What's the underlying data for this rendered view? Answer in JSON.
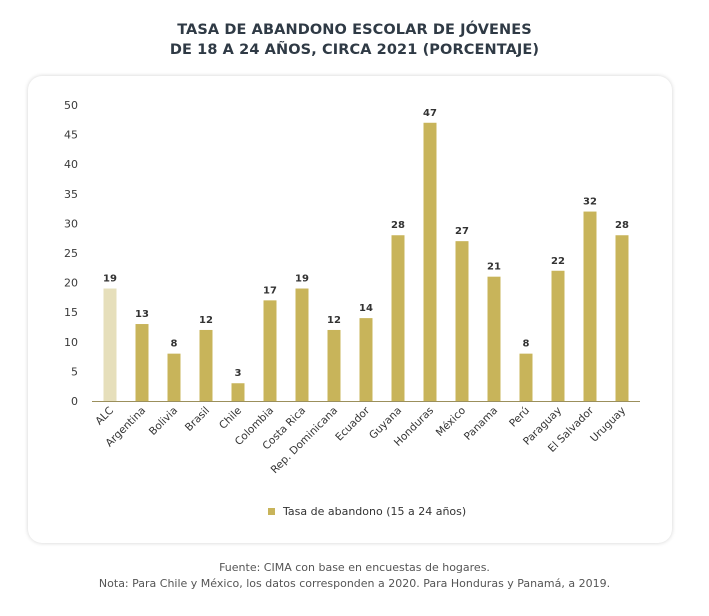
{
  "title_lines": [
    "TASA DE ABANDONO ESCOLAR DE JÓVENES",
    "DE 18 A 24 AÑOS, CIRCA 2021 (PORCENTAJE)"
  ],
  "footer": {
    "source": "Fuente: CIMA con base en encuestas de hogares.",
    "note": "Nota: Para Chile y México, los datos corresponden a 2020. Para Honduras y Panamá, a 2019."
  },
  "colors": {
    "bar": "#c8b45a",
    "highlight": "#e6dfbb",
    "axis": "#9b8f5c"
  },
  "chart_data": {
    "type": "bar",
    "title": "TASA DE ABANDONO ESCOLAR DE JÓVENES DE 18 A 24 AÑOS, CIRCA 2021 (PORCENTAJE)",
    "xlabel": "",
    "ylabel": "",
    "ylim": [
      0,
      50
    ],
    "yticks": [
      0,
      5,
      10,
      15,
      20,
      25,
      30,
      35,
      40,
      45,
      50
    ],
    "grid": false,
    "legend_position": "bottom",
    "categories": [
      "ALC",
      "Argentina",
      "Bolivia",
      "Brasil",
      "Chile",
      "Colombia",
      "Costa Rica",
      "Rep. Dominicana",
      "Ecuador",
      "Guyana",
      "Honduras",
      "México",
      "Panama",
      "Perú",
      "Paraguay",
      "El Salvador",
      "Uruguay"
    ],
    "series": [
      {
        "name": "Tasa de abandono (15 a 24 años)",
        "values": [
          19,
          13,
          8,
          12,
          3,
          17,
          19,
          12,
          14,
          28,
          47,
          27,
          21,
          8,
          22,
          32,
          28
        ]
      }
    ],
    "highlight_category": "ALC"
  }
}
